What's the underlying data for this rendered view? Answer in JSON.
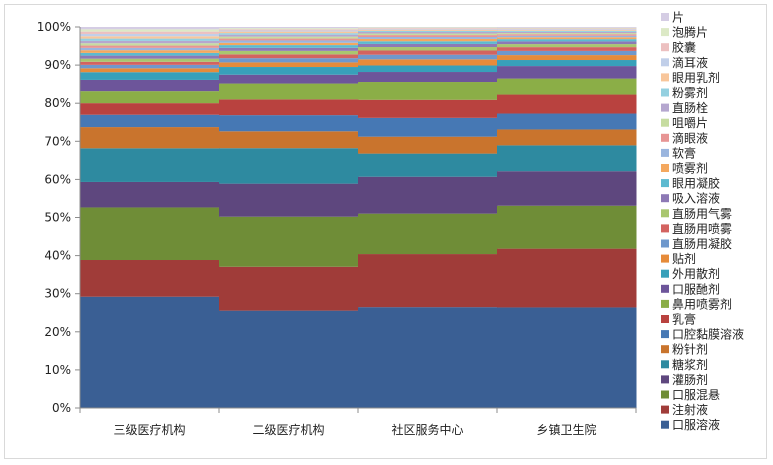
{
  "chart_data": {
    "type": "bar",
    "stacked": true,
    "stacking": "percent",
    "grid": false,
    "legend_position": "right",
    "ylim": [
      0,
      100
    ],
    "y_ticks": [
      "0%",
      "10%",
      "20%",
      "30%",
      "40%",
      "50%",
      "60%",
      "70%",
      "80%",
      "90%",
      "100%"
    ],
    "categories": [
      "三级医疗机构",
      "二级医疗机构",
      "社区服务中心",
      "乡镇卫生院"
    ],
    "series": [
      {
        "name": "口服溶液",
        "color": "#3a5f94",
        "values": [
          28.8,
          25.3,
          26.2,
          26.5
        ]
      },
      {
        "name": "注射液",
        "color": "#a03c39",
        "values": [
          9.5,
          11.4,
          13.8,
          15.5
        ]
      },
      {
        "name": "口服混悬",
        "color": "#6f8d37",
        "values": [
          13.6,
          13.0,
          10.5,
          11.3
        ]
      },
      {
        "name": "灌肠剂",
        "color": "#5e477e",
        "values": [
          6.6,
          8.6,
          9.6,
          9.1
        ]
      },
      {
        "name": "糖浆剂",
        "color": "#2e8aa0",
        "values": [
          8.7,
          9.2,
          6.0,
          6.8
        ]
      },
      {
        "name": "粉针剂",
        "color": "#c9742d",
        "values": [
          5.5,
          4.4,
          4.4,
          4.2
        ]
      },
      {
        "name": "口腔黏膜溶液",
        "color": "#4678b4",
        "values": [
          3.2,
          4.2,
          4.9,
          4.2
        ]
      },
      {
        "name": "乳膏",
        "color": "#b9423f",
        "values": [
          3.0,
          4.1,
          4.7,
          5.0
        ]
      },
      {
        "name": "鼻用喷雾剂",
        "color": "#8bae47",
        "values": [
          3.1,
          4.1,
          4.6,
          4.2
        ]
      },
      {
        "name": "口服酏剂",
        "color": "#6d559a",
        "values": [
          2.9,
          2.3,
          2.6,
          3.3
        ]
      },
      {
        "name": "外用散剂",
        "color": "#38a0ba",
        "values": [
          2.0,
          2.0,
          1.7,
          1.6
        ]
      },
      {
        "name": "贴剂",
        "color": "#e68b3a",
        "values": [
          1.0,
          1.2,
          1.6,
          1.3
        ]
      },
      {
        "name": "直肠用凝胶",
        "color": "#6f98cc",
        "values": [
          0.9,
          1.1,
          1.2,
          1.1
        ]
      },
      {
        "name": "直肠用喷雾",
        "color": "#d36360",
        "values": [
          0.8,
          1.0,
          1.1,
          1.0
        ]
      },
      {
        "name": "直肠用气雾",
        "color": "#a9c66f",
        "values": [
          0.8,
          0.9,
          0.9,
          0.8
        ]
      },
      {
        "name": "吸入溶液",
        "color": "#8d79b5",
        "values": [
          0.8,
          0.8,
          0.8,
          0.7
        ]
      },
      {
        "name": "眼用凝胶",
        "color": "#5cbad0",
        "values": [
          0.7,
          0.7,
          0.7,
          0.6
        ]
      },
      {
        "name": "喷雾剂",
        "color": "#f4a85f",
        "values": [
          0.7,
          0.6,
          0.6,
          0.5
        ]
      },
      {
        "name": "软膏",
        "color": "#9ab5de",
        "values": [
          0.6,
          0.6,
          0.5,
          0.4
        ]
      },
      {
        "name": "滴眼液",
        "color": "#e79594",
        "values": [
          0.6,
          0.5,
          0.5,
          0.4
        ]
      },
      {
        "name": "咀嚼片",
        "color": "#c6dca0",
        "values": [
          0.6,
          0.5,
          0.4,
          0.3
        ]
      },
      {
        "name": "直肠栓",
        "color": "#b5a7cf",
        "values": [
          0.6,
          0.5,
          0.4,
          0.3
        ]
      },
      {
        "name": "粉雾剂",
        "color": "#94d0e0",
        "values": [
          0.6,
          0.4,
          0.3,
          0.3
        ]
      },
      {
        "name": "眼用乳剂",
        "color": "#f8c69b",
        "values": [
          0.6,
          0.4,
          0.3,
          0.2
        ]
      },
      {
        "name": "滴耳液",
        "color": "#c1cfe9",
        "values": [
          0.6,
          0.3,
          0.2,
          0.2
        ]
      },
      {
        "name": "胶囊",
        "color": "#ecc0c0",
        "values": [
          0.6,
          0.3,
          0.2,
          0.2
        ]
      },
      {
        "name": "泡腾片",
        "color": "#dce9c6",
        "values": [
          0.6,
          0.3,
          0.2,
          0.2
        ]
      },
      {
        "name": "片",
        "color": "#d5cde4",
        "values": [
          0.6,
          0.3,
          0.1,
          0.2
        ]
      }
    ]
  }
}
